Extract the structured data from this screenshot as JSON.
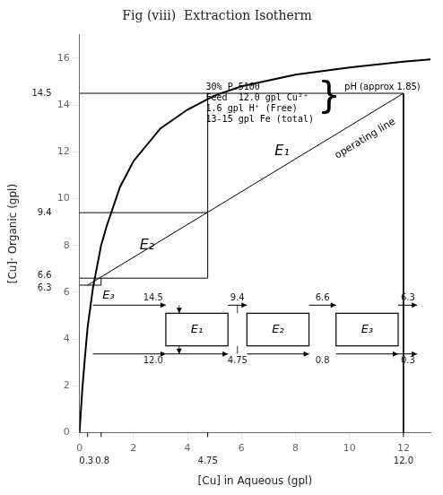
{
  "chart_data": {
    "type": "line",
    "title": "Fig (viii)  Extraction Isotherm",
    "xlabel": "[Cu] in Aqueous (gpl)",
    "ylabel": "[Cu]· Organic (gpl)",
    "xlim": [
      0,
      13
    ],
    "ylim": [
      0,
      17
    ],
    "xticks": [
      0,
      2,
      4,
      6,
      8,
      10,
      12
    ],
    "yticks": [
      0,
      2,
      4,
      6,
      8,
      10,
      12,
      14,
      16
    ],
    "grid": false,
    "color": "#000000",
    "series": [
      {
        "x": [
          0,
          0.1,
          0.2,
          0.3,
          0.5,
          0.8,
          1.0,
          1.5,
          2.0,
          3.0,
          4.0,
          5.0,
          6.0,
          8.0,
          10.0,
          12.0,
          13.0
        ],
        "values": [
          0,
          1.8,
          3.2,
          4.5,
          6.2,
          8.0,
          8.8,
          10.5,
          11.6,
          13.0,
          13.8,
          14.4,
          14.8,
          15.3,
          15.6,
          15.85,
          15.95
        ]
      },
      {
        "x": [
          0.3,
          12.0
        ],
        "values": [
          6.3,
          14.5
        ]
      },
      {
        "x": [
          0.3,
          0.8
        ],
        "values": [
          6.3,
          6.3
        ]
      },
      {
        "x": [
          0.8,
          0.8
        ],
        "values": [
          6.3,
          6.6
        ]
      },
      {
        "x": [
          0.3,
          4.75
        ],
        "values": [
          6.6,
          6.6
        ]
      },
      {
        "x": [
          4.75,
          4.75
        ],
        "values": [
          6.6,
          9.4
        ]
      },
      {
        "x": [
          0.3,
          4.75
        ],
        "values": [
          9.4,
          9.4
        ]
      },
      {
        "x": [
          4.75,
          4.75
        ],
        "values": [
          9.4,
          14.5
        ]
      },
      {
        "x": [
          0.3,
          12.0
        ],
        "values": [
          14.5,
          14.5
        ]
      },
      {
        "x": [
          12.0,
          12.0
        ],
        "values": [
          14.5,
          0.0
        ]
      },
      {
        "x": [
          0.0,
          0.3
        ],
        "values": [
          6.3,
          6.3
        ]
      },
      {
        "x": [
          0.0,
          0.3
        ],
        "values": [
          6.6,
          6.6
        ]
      },
      {
        "x": [
          0.0,
          0.3
        ],
        "values": [
          9.4,
          9.4
        ]
      },
      {
        "x": [
          0.0,
          0.3
        ],
        "values": [
          14.5,
          14.5
        ]
      }
    ],
    "y_marks": [
      {
        "value": 14.5,
        "label": "14.5"
      },
      {
        "value": 9.4,
        "label": "9.4"
      },
      {
        "value": 6.6,
        "label": "6.6"
      },
      {
        "value": 6.3,
        "label": "6.3"
      }
    ],
    "x_marks": [
      {
        "value": 0.3,
        "label": "0.3"
      },
      {
        "value": 0.8,
        "label": "0.8"
      },
      {
        "value": 4.75,
        "label": "4.75"
      },
      {
        "value": 12.0,
        "label": "12.0"
      }
    ],
    "stage_labels": [
      {
        "text": "E₁",
        "x": 7.5,
        "y": 12.0
      },
      {
        "text": "E₂",
        "x": 2.5,
        "y": 8.0
      }
    ],
    "E3_label": {
      "text": "E₃",
      "x": 0.85,
      "y": 6.1
    },
    "operating_line_label": {
      "text": "operating line",
      "x": 9.5,
      "y": 11.8
    },
    "info_text": "30% P.5100\nFeed  12.0 gpl Cu²⁺\n1.6 gpl H⁺ (Free)\n13-15 gpl Fe (total)",
    "brace": "}",
    "ph_text": "pH (approx 1.85)",
    "flow_diagram": {
      "stages": [
        "E₁",
        "E₂",
        "E₃"
      ],
      "organic_labels": [
        "14.5",
        "9.4",
        "6.6",
        "6.3"
      ],
      "aqueous_labels": [
        "12.0",
        "4.75",
        "0.8",
        "0.3"
      ]
    }
  }
}
